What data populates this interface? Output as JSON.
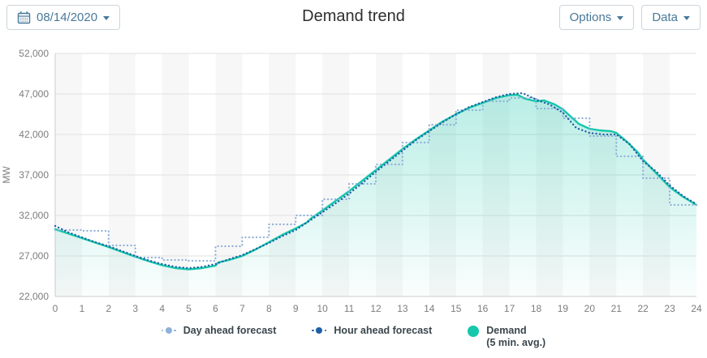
{
  "header": {
    "date_value": "08/14/2020",
    "title": "Demand trend",
    "options_label": "Options",
    "data_label": "Data"
  },
  "legend": {
    "items": [
      {
        "label": "Day ahead forecast"
      },
      {
        "label": "Hour ahead forecast"
      },
      {
        "label": "Demand",
        "label2": "(5 min. avg.)"
      }
    ]
  },
  "colors": {
    "accent_teal": "#15c7ab",
    "day_ahead_blue": "#8fb0da",
    "hour_ahead_blue": "#1d5fa5",
    "band_gray": "#f7f7f7",
    "grid_gray": "#e0e0e0",
    "axis_line_gray": "#cccccc",
    "axis_text_gray": "#7d7d7d",
    "button_blue": "#47799a"
  },
  "chart_data": {
    "type": "line",
    "title": "Demand trend",
    "xlabel": "",
    "ylabel": "MW",
    "xlim": [
      0,
      24
    ],
    "ylim": [
      22000,
      52000
    ],
    "x_ticks": [
      0,
      1,
      2,
      3,
      4,
      5,
      6,
      7,
      8,
      9,
      10,
      11,
      12,
      13,
      14,
      15,
      16,
      17,
      18,
      19,
      20,
      21,
      22,
      23,
      24
    ],
    "y_ticks": [
      22000,
      27000,
      32000,
      37000,
      42000,
      47000,
      52000
    ],
    "y_tick_labels": [
      "22,000",
      "27,000",
      "32,000",
      "37,000",
      "42,000",
      "47,000",
      "52,000"
    ],
    "grid": "horizontal gridlines with alternating vertical hour bands (even hours shaded)",
    "legend_position": "bottom",
    "series": [
      {
        "name": "Day ahead forecast",
        "type": "step",
        "style": "dotted",
        "color": "#8fb0da",
        "x": [
          0,
          1,
          2,
          3,
          4,
          5,
          6,
          7,
          8,
          9,
          10,
          11,
          12,
          13,
          14,
          15,
          16,
          17,
          18,
          19,
          20,
          21,
          22,
          23
        ],
        "values": [
          30200,
          30100,
          28300,
          26800,
          26500,
          26400,
          28200,
          29300,
          30900,
          32000,
          34000,
          35900,
          38300,
          41000,
          43200,
          45000,
          46100,
          46500,
          45200,
          44000,
          41800,
          39300,
          36600,
          33300
        ]
      },
      {
        "name": "Hour ahead forecast",
        "type": "line",
        "style": "dotted",
        "color": "#1d5fa5",
        "x": [
          0,
          0.5,
          1,
          1.5,
          2,
          2.5,
          3,
          3.5,
          4,
          4.5,
          5,
          5.5,
          6,
          6.5,
          7,
          7.5,
          8,
          8.5,
          9,
          9.5,
          10,
          10.5,
          11,
          11.5,
          12,
          12.5,
          13,
          13.5,
          14,
          14.5,
          15,
          15.5,
          16,
          16.5,
          17,
          17.5,
          18,
          18.5,
          19,
          19.5,
          20,
          20.5,
          21,
          21.5,
          22,
          22.5,
          23,
          23.5,
          24
        ],
        "values": [
          30700,
          29900,
          29300,
          28700,
          28200,
          27600,
          27000,
          26450,
          26000,
          25650,
          25500,
          25650,
          26000,
          26600,
          27100,
          27850,
          28600,
          29450,
          30200,
          31300,
          32400,
          33500,
          34700,
          36000,
          37400,
          38700,
          40000,
          41300,
          42400,
          43500,
          44500,
          45400,
          46000,
          46600,
          47000,
          47100,
          46300,
          45700,
          44700,
          42800,
          42200,
          42000,
          42000,
          40800,
          38700,
          37400,
          35700,
          34400,
          33400
        ]
      },
      {
        "name": "Demand (5 min. avg.)",
        "type": "area-line",
        "style": "solid",
        "color": "#15c7ab",
        "x": [
          0,
          0.5,
          1,
          1.5,
          2,
          2.5,
          3,
          3.5,
          4,
          4.5,
          5,
          5.5,
          6,
          6.1,
          6.5,
          7,
          7.5,
          8,
          8.5,
          9,
          9.4,
          9.6,
          10,
          10.5,
          11,
          11.5,
          12,
          12.5,
          13,
          13.5,
          14,
          14.5,
          15,
          15.5,
          16,
          16.5,
          17,
          17.3,
          17.6,
          18,
          18.3,
          18.7,
          19,
          19.3,
          19.6,
          20,
          20.4,
          20.8,
          21,
          21.4,
          21.8,
          22,
          22.5,
          23,
          23.5,
          24
        ],
        "values": [
          30300,
          29750,
          29200,
          28650,
          28100,
          27500,
          26900,
          26350,
          25850,
          25500,
          25350,
          25500,
          25800,
          26200,
          26500,
          27000,
          27800,
          28700,
          29600,
          30400,
          31100,
          31700,
          32600,
          33800,
          35000,
          36300,
          37600,
          38900,
          40200,
          41400,
          42500,
          43600,
          44500,
          45300,
          45900,
          46500,
          46850,
          46900,
          46400,
          46100,
          46200,
          45700,
          45100,
          44200,
          43300,
          42700,
          42500,
          42400,
          42200,
          41100,
          39800,
          38900,
          37200,
          35500,
          34300,
          33300
        ]
      }
    ]
  }
}
